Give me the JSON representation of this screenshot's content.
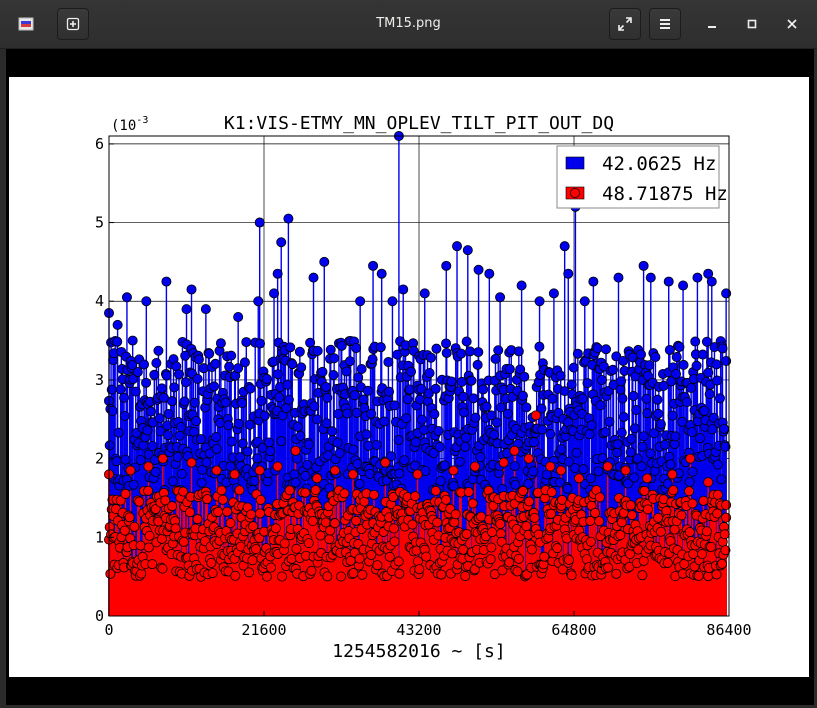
{
  "window": {
    "title": "TM15.png",
    "app_icon": "image-viewer-icon",
    "buttons": {
      "new": "plus-icon",
      "fullscreen": "fullscreen-icon",
      "menu": "hamburger-menu-icon",
      "minimize": "minimize-icon",
      "maximize": "maximize-icon",
      "close": "close-icon"
    }
  },
  "colors": {
    "series1": "#0000ee",
    "series2": "#ff0000",
    "viewer_bg": "#000000",
    "titlebar_bg": "#2e2e2e"
  },
  "chart_data": {
    "type": "scatter",
    "style": "stem",
    "title": "K1:VIS-ETMY_MN_OPLEV_TILT_PIT_OUT_DQ",
    "xlabel": "1254582016 ~ [s]",
    "ylabel": "",
    "y_multiplier": "(10",
    "y_multiplier_exp": "-3",
    "xlim": [
      0,
      86400
    ],
    "ylim": [
      0,
      6.1
    ],
    "xticks": [
      "0",
      "21600",
      "43200",
      "64800",
      "86400"
    ],
    "yticks": [
      "0",
      "1",
      "2",
      "3",
      "4",
      "5",
      "6"
    ],
    "grid": true,
    "legend": "top-right",
    "series": [
      {
        "name": "42.0625 Hz",
        "color": "#0000ee",
        "band": [
          1.6,
          3.5
        ],
        "x": [
          0,
          1200,
          2500,
          3300,
          5200,
          8000,
          10800,
          11500,
          13500,
          18000,
          20800,
          21000,
          23000,
          23500,
          24000,
          25000,
          28500,
          30000,
          35000,
          36800,
          38000,
          39500,
          40400,
          41000,
          44000,
          47000,
          48500,
          50000,
          51500,
          53000,
          54500,
          57500,
          60000,
          62000,
          63500,
          64000,
          65000,
          66300,
          67500,
          71000,
          74500,
          75500,
          78000,
          80000,
          82000,
          83500,
          84000,
          85500,
          86000
        ],
        "values": [
          3.85,
          3.7,
          4.05,
          3.5,
          4.0,
          4.25,
          3.9,
          4.15,
          3.9,
          3.8,
          4.0,
          5.0,
          4.1,
          4.35,
          4.75,
          5.05,
          4.3,
          4.5,
          4.0,
          4.45,
          4.35,
          4.0,
          6.1,
          4.15,
          4.1,
          4.45,
          4.7,
          4.65,
          4.4,
          4.35,
          4.05,
          4.2,
          4.0,
          4.1,
          4.7,
          4.35,
          5.2,
          4.0,
          4.25,
          4.3,
          4.45,
          4.3,
          4.25,
          4.2,
          4.3,
          4.35,
          4.25,
          3.4,
          4.1
        ]
      },
      {
        "name": "48.71875 Hz",
        "color": "#ff0000",
        "band": [
          0.5,
          1.6
        ],
        "x": [
          0,
          3000,
          5500,
          7500,
          11500,
          15000,
          17500,
          21000,
          23500,
          26000,
          29000,
          31500,
          34000,
          38500,
          43000,
          48000,
          51000,
          55000,
          56500,
          58500,
          59500,
          61500,
          63000,
          65500,
          69500,
          72000,
          75000,
          78500,
          81000,
          83500,
          86000
        ],
        "values": [
          1.8,
          1.85,
          1.9,
          2.0,
          1.95,
          1.85,
          1.8,
          1.85,
          1.9,
          2.1,
          1.75,
          1.85,
          1.8,
          1.95,
          1.8,
          1.85,
          1.9,
          1.95,
          2.1,
          2.0,
          2.55,
          1.9,
          1.85,
          1.75,
          1.9,
          1.85,
          1.75,
          1.8,
          2.0,
          1.7,
          1.25
        ]
      }
    ]
  }
}
